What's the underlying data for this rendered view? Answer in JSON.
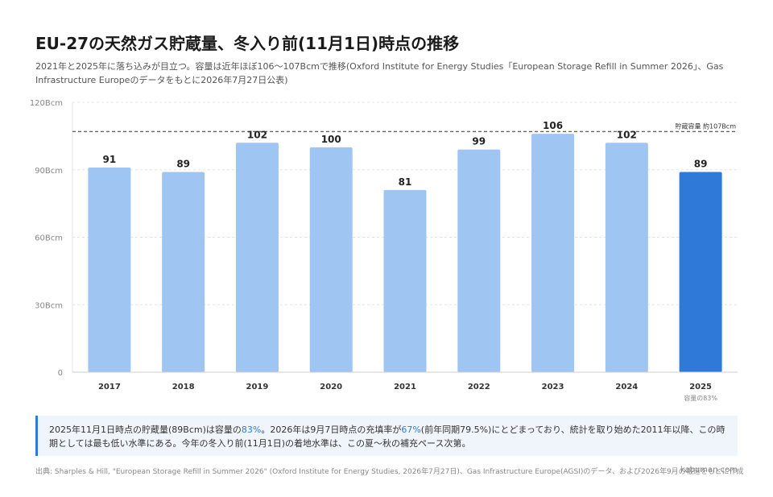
{
  "header": {
    "title": "EU-27の天然ガス貯蔵量、冬入り前(11月1日)時点の推移",
    "subtitle": "2021年と2025年に落ち込みが目立つ。容量は近年ほぼ106〜107Bcmで推移(Oxford Institute for Energy Studies「European Storage Refill in Summer 2026」、Gas Infrastructure Europeのデータをもとに2026年7月27日公表)"
  },
  "chart_data": {
    "type": "bar",
    "categories": [
      "2017",
      "2018",
      "2019",
      "2020",
      "2021",
      "2022",
      "2023",
      "2024",
      "2025"
    ],
    "values": [
      91,
      89,
      102,
      100,
      81,
      99,
      106,
      102,
      89
    ],
    "data_labels": [
      "91",
      "89",
      "102",
      "100",
      "81",
      "99",
      "106",
      "102",
      "89"
    ],
    "y_ticks": [
      0,
      30,
      60,
      90,
      120
    ],
    "y_tick_labels": [
      "0",
      "30Bcm",
      "60Bcm",
      "90Bcm",
      "120Bcm"
    ],
    "ylim": [
      0,
      120
    ],
    "grid": true,
    "highlight_index": 8,
    "highlight_sublabel": "容量の83%",
    "reference_line": {
      "value": 107,
      "label": "貯蔵容量 約107Bcm"
    },
    "colors": {
      "bar": "#9fc5f2",
      "highlight": "#2f7ad9",
      "grid": "#e4e4e4",
      "axis": "#cccccc",
      "reference": "#333333"
    }
  },
  "note": {
    "p1": "2025年11月1日時点の貯蔵量(89Bcm)は容量の",
    "h1": "83%",
    "p2": "。2026年は9月7日時点の充填率が",
    "h2": "67%",
    "p3": "(前年同期79.5%)にとどまっており、統計を取り始めた2011年以降、この時期としては最も低い水準にある。今年の冬入り前(11月1日)の着地水準は、この夏〜秋の補充ペース次第。"
  },
  "footer": {
    "source": "出典: Sharples & Hill, \"European Storage Refill in Summer 2026\" (Oxford Institute for Energy Studies, 2026年7月27日)、Gas Infrastructure Europe(AGSI)のデータ、および2026年9月の報道をもとに作成",
    "credit": "kabuman.com"
  }
}
